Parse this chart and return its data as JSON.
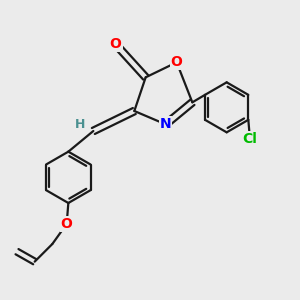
{
  "bg_color": "#ebebeb",
  "bond_color": "#1a1a1a",
  "atom_colors": {
    "O": "#ff0000",
    "N": "#0000ff",
    "Cl": "#00bb00",
    "H": "#4a9090",
    "C": "#1a1a1a"
  },
  "lw": 1.6,
  "doff": 0.008,
  "fs": 10
}
